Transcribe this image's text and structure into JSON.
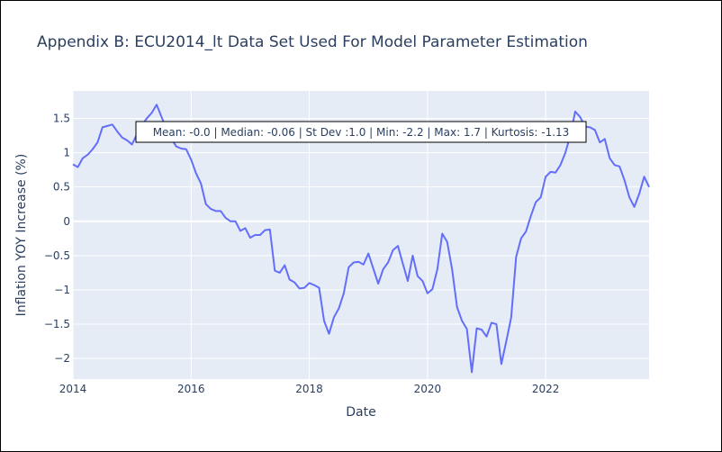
{
  "chart_data": {
    "type": "line",
    "title": "Appendix B: ECU2014_lt Data Set Used For Model Parameter Estimation",
    "xlabel": "Date",
    "ylabel": "Inflation YOY Increase (%)",
    "xlim": [
      "2014-01",
      "2023-10"
    ],
    "ylim": [
      -2.3,
      1.9
    ],
    "x_ticks": [
      "2014",
      "2016",
      "2018",
      "2020",
      "2022"
    ],
    "y_ticks": [
      "1.5",
      "1",
      "0.5",
      "0",
      "−0.5",
      "−1",
      "−1.5",
      "−2"
    ],
    "grid": true,
    "annotation": "Mean: -0.0 | Median: -0.06 | St Dev :1.0 | Min: -2.2 | Max: 1.7 | Kurtosis: -1.13",
    "colors": {
      "line": "#636efa",
      "plot_bg": "#e5ecf6",
      "grid": "#ffffff",
      "text": "#2a3f5f"
    },
    "series": [
      {
        "x": [
          "2014-01",
          "2014-02",
          "2014-03",
          "2014-04",
          "2014-05",
          "2014-06",
          "2014-07",
          "2014-08",
          "2014-09",
          "2014-10",
          "2014-11",
          "2014-12",
          "2015-01",
          "2015-02",
          "2015-03",
          "2015-04",
          "2015-05",
          "2015-06",
          "2015-07",
          "2015-08",
          "2015-09",
          "2015-10",
          "2015-11",
          "2015-12",
          "2016-01",
          "2016-02",
          "2016-03",
          "2016-04",
          "2016-05",
          "2016-06",
          "2016-07",
          "2016-08",
          "2016-09",
          "2016-10",
          "2016-11",
          "2016-12",
          "2017-01",
          "2017-02",
          "2017-03",
          "2017-04",
          "2017-05",
          "2017-06",
          "2017-07",
          "2017-08",
          "2017-09",
          "2017-10",
          "2017-11",
          "2017-12",
          "2018-01",
          "2018-02",
          "2018-03",
          "2018-04",
          "2018-05",
          "2018-06",
          "2018-07",
          "2018-08",
          "2018-09",
          "2018-10",
          "2018-11",
          "2018-12",
          "2019-01",
          "2019-02",
          "2019-03",
          "2019-04",
          "2019-05",
          "2019-06",
          "2019-07",
          "2019-08",
          "2019-09",
          "2019-10",
          "2019-11",
          "2019-12",
          "2020-01",
          "2020-02",
          "2020-03",
          "2020-04",
          "2020-05",
          "2020-06",
          "2020-07",
          "2020-08",
          "2020-09",
          "2020-10",
          "2020-11",
          "2020-12",
          "2021-01",
          "2021-02",
          "2021-03",
          "2021-04",
          "2021-05",
          "2021-06",
          "2021-07",
          "2021-08",
          "2021-09",
          "2021-10",
          "2021-11",
          "2021-12",
          "2022-01",
          "2022-02",
          "2022-03",
          "2022-04",
          "2022-05",
          "2022-06",
          "2022-07",
          "2022-08",
          "2022-09",
          "2022-10",
          "2022-11",
          "2022-12",
          "2023-01",
          "2023-02",
          "2023-03",
          "2023-04",
          "2023-05",
          "2023-06",
          "2023-07",
          "2023-08",
          "2023-09",
          "2023-10"
        ],
        "values": [
          0.83,
          0.79,
          0.92,
          0.97,
          1.05,
          1.15,
          1.37,
          1.39,
          1.41,
          1.31,
          1.22,
          1.18,
          1.12,
          1.27,
          1.4,
          1.5,
          1.58,
          1.7,
          1.52,
          1.35,
          1.2,
          1.09,
          1.06,
          1.05,
          0.9,
          0.7,
          0.55,
          0.25,
          0.18,
          0.15,
          0.15,
          0.05,
          0.0,
          0.0,
          -0.14,
          -0.1,
          -0.24,
          -0.2,
          -0.2,
          -0.13,
          -0.12,
          -0.72,
          -0.75,
          -0.64,
          -0.85,
          -0.89,
          -0.98,
          -0.97,
          -0.9,
          -0.93,
          -0.97,
          -1.45,
          -1.64,
          -1.4,
          -1.27,
          -1.05,
          -0.67,
          -0.6,
          -0.59,
          -0.63,
          -0.47,
          -0.69,
          -0.91,
          -0.7,
          -0.6,
          -0.42,
          -0.36,
          -0.62,
          -0.87,
          -0.5,
          -0.8,
          -0.87,
          -1.05,
          -0.99,
          -0.7,
          -0.18,
          -0.3,
          -0.7,
          -1.25,
          -1.45,
          -1.57,
          -2.2,
          -1.56,
          -1.58,
          -1.68,
          -1.48,
          -1.5,
          -2.08,
          -1.75,
          -1.4,
          -0.52,
          -0.25,
          -0.15,
          0.08,
          0.28,
          0.35,
          0.65,
          0.72,
          0.71,
          0.82,
          1.0,
          1.25,
          1.6,
          1.52,
          1.38,
          1.37,
          1.33,
          1.15,
          1.2,
          0.92,
          0.82,
          0.8,
          0.6,
          0.35,
          0.21,
          0.4,
          0.65,
          0.5
        ]
      }
    ]
  }
}
